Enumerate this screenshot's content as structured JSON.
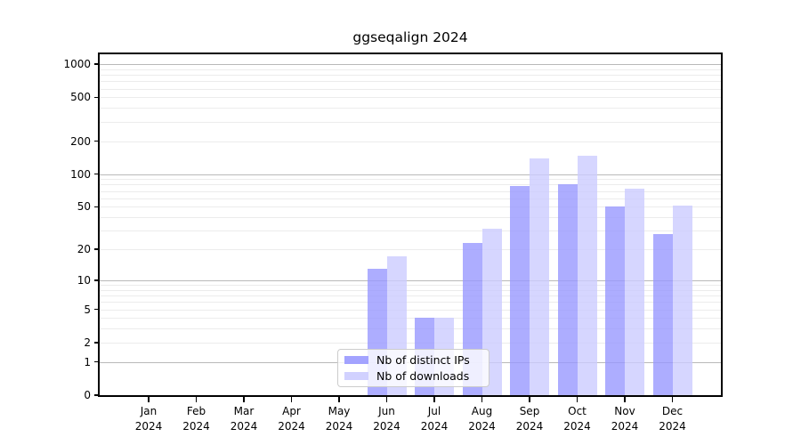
{
  "chart_data": {
    "type": "bar",
    "title": "ggseqalign 2024",
    "scale": "log1p",
    "categories": [
      "Jan",
      "Feb",
      "Mar",
      "Apr",
      "May",
      "Jun",
      "Jul",
      "Aug",
      "Sep",
      "Oct",
      "Nov",
      "Dec"
    ],
    "category_year": "2024",
    "series": [
      {
        "name": "Nb of distinct IPs",
        "color": "#9999ff",
        "alpha": 0.8,
        "values": [
          0,
          0,
          0,
          0,
          0,
          13,
          4,
          23,
          78,
          80,
          50,
          28
        ]
      },
      {
        "name": "Nb of downloads",
        "color": "#ccccff",
        "alpha": 0.8,
        "values": [
          0,
          0,
          0,
          0,
          0,
          17,
          4,
          31,
          140,
          147,
          73,
          51
        ]
      }
    ],
    "y_ticks": [
      0,
      1,
      2,
      5,
      10,
      20,
      50,
      100,
      200,
      500,
      1000
    ],
    "y_major_gridlines": [
      1,
      10,
      100,
      1000
    ],
    "ylim": [
      0,
      1230
    ],
    "grid": "both",
    "legend_position": "lower-center",
    "colors": {
      "major_grid": "#b9b9b9",
      "minor_grid": "#ececec",
      "axis": "#000000",
      "background": "#ffffff"
    }
  }
}
